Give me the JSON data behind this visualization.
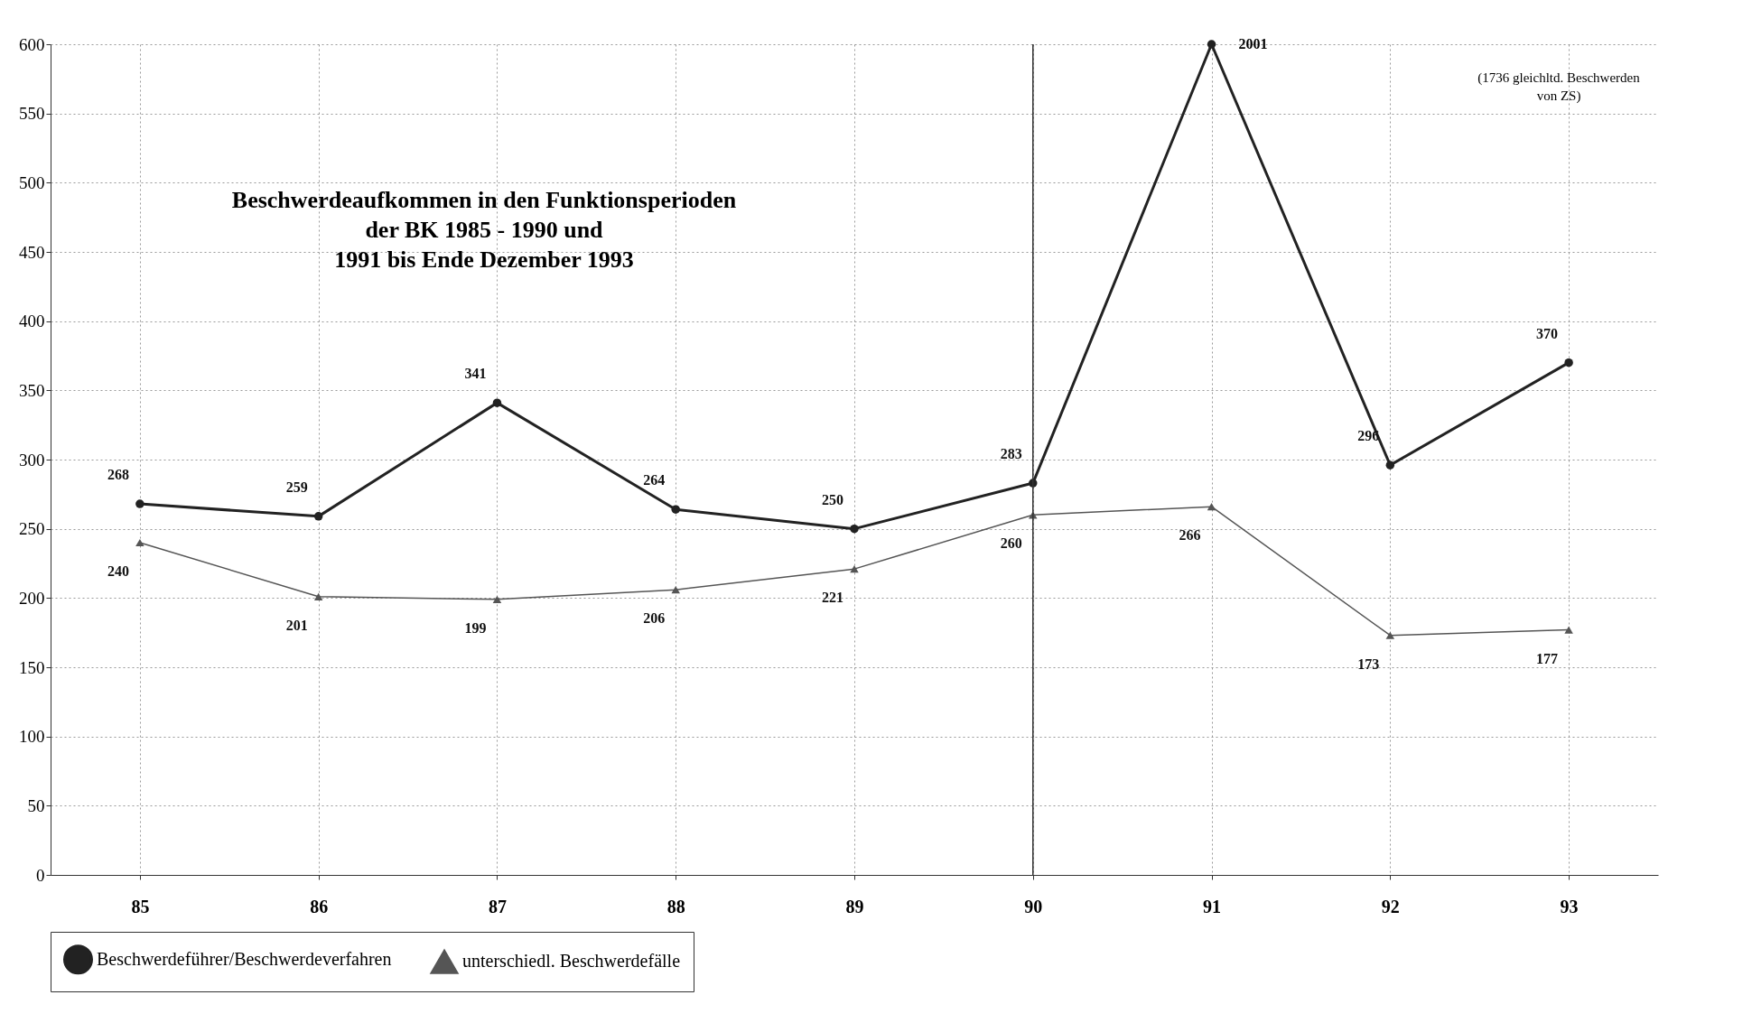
{
  "chart_data": {
    "type": "line",
    "title": "Beschwerdeaufkommen in den Funktionsperioden\nder BK 1985 - 1990 und\n1991 bis Ende Dezember 1993",
    "categories": [
      "85",
      "86",
      "87",
      "88",
      "89",
      "90",
      "91",
      "92",
      "93"
    ],
    "series": [
      {
        "name": "Beschwerdeführer/Beschwerdeverfahren",
        "color": "#222222",
        "marker": "circle",
        "values": [
          268,
          259,
          341,
          264,
          250,
          283,
          600,
          296,
          370
        ],
        "value_labels": [
          "268",
          "259",
          "341",
          "264",
          "250",
          "283",
          null,
          "296",
          "370"
        ]
      },
      {
        "name": "unterschiedl. Beschwerdefälle",
        "color": "#555555",
        "marker": "triangle",
        "values": [
          240,
          201,
          199,
          206,
          221,
          260,
          266,
          173,
          177
        ],
        "value_labels": [
          "240",
          "201",
          "199",
          "206",
          "221",
          "260",
          "266",
          "173",
          "177"
        ]
      }
    ],
    "ylim": [
      0,
      600
    ],
    "yticks": [
      0,
      50,
      100,
      150,
      200,
      250,
      300,
      350,
      400,
      450,
      500,
      550,
      600
    ],
    "grid": true,
    "legend": "bottom",
    "line_style": "solid",
    "ref_lines": [
      {
        "axis": "x",
        "value": "90",
        "color": "#333333"
      }
    ],
    "annotations": [
      {
        "text": "2001",
        "x": "91",
        "y": 600
      },
      "(1736 gleichltd. Beschwerden von ZS)"
    ]
  }
}
